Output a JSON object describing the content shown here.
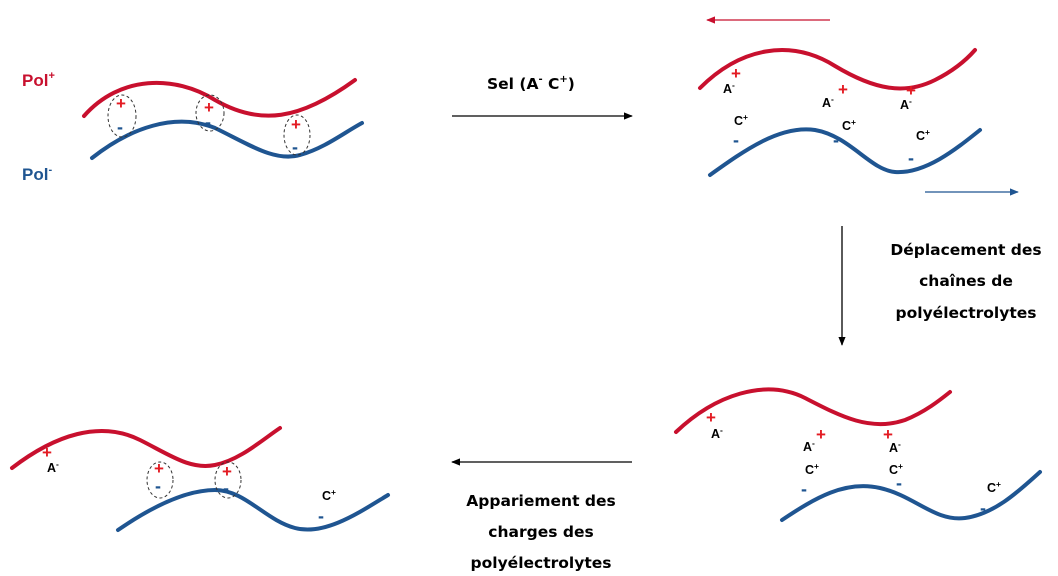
{
  "legend": {
    "polycation": {
      "base": "Pol",
      "charge": "+"
    },
    "polyanion": {
      "base": "Pol",
      "charge": "-"
    }
  },
  "steps": {
    "salt": {
      "base": "Sel (A",
      "anion_charge": "-",
      "mid": " C",
      "cation_charge": "+",
      "end": ")"
    },
    "displacement": [
      "Déplacement des",
      "chaînes de",
      "polyélectrolytes"
    ],
    "pairing": [
      "Appariement des",
      "charges des",
      "polyélectrolytes"
    ]
  },
  "ions": {
    "anion": {
      "base": "A",
      "charge": "-"
    },
    "cation": {
      "base": "C",
      "charge": "+"
    }
  },
  "symbols": {
    "plus": "+",
    "minus": "-"
  },
  "colors": {
    "polycation": "#c8102e",
    "polyanion": "#1f5591",
    "plus_sign": "#e31b23"
  }
}
